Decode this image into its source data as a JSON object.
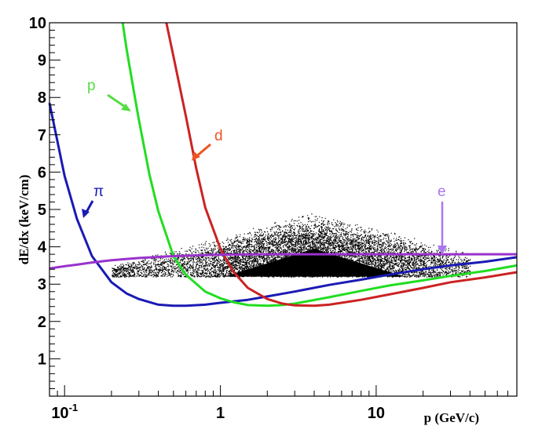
{
  "chart_data": {
    "type": "line",
    "title": "",
    "xlabel": "p (GeV/c)",
    "ylabel": "dE/dx (keV/cm)",
    "xscale": "log",
    "xlim": [
      0.08,
      80
    ],
    "ylim": [
      0,
      10
    ],
    "x_ticks": [
      {
        "value": 0.1,
        "label": "10",
        "exp": "-1"
      },
      {
        "value": 1,
        "label": "1",
        "exp": ""
      },
      {
        "value": 10,
        "label": "10",
        "exp": ""
      }
    ],
    "y_ticks": [
      {
        "value": 1,
        "label": "1"
      },
      {
        "value": 2,
        "label": "2"
      },
      {
        "value": 3,
        "label": "3"
      },
      {
        "value": 4,
        "label": "4"
      },
      {
        "value": 5,
        "label": "5"
      },
      {
        "value": 6,
        "label": "6"
      },
      {
        "value": 7,
        "label": "7"
      },
      {
        "value": 8,
        "label": "8"
      },
      {
        "value": 9,
        "label": "9"
      },
      {
        "value": 10,
        "label": "10"
      }
    ],
    "grid": false,
    "series": [
      {
        "name": "π",
        "color": "#1a1ab4",
        "x": [
          0.08,
          0.1,
          0.12,
          0.15,
          0.2,
          0.25,
          0.3,
          0.4,
          0.5,
          0.6,
          0.8,
          1,
          1.5,
          2,
          3,
          5,
          8,
          12,
          20,
          30,
          50,
          80
        ],
        "y": [
          7.85,
          5.9,
          4.75,
          3.75,
          3.05,
          2.75,
          2.6,
          2.45,
          2.42,
          2.42,
          2.45,
          2.5,
          2.58,
          2.67,
          2.8,
          2.98,
          3.12,
          3.25,
          3.4,
          3.5,
          3.6,
          3.72
        ]
      },
      {
        "name": "p",
        "color": "#22dd22",
        "x": [
          0.236,
          0.25,
          0.28,
          0.3,
          0.35,
          0.4,
          0.5,
          0.6,
          0.8,
          1,
          1.2,
          1.5,
          2,
          2.5,
          3,
          5,
          8,
          12,
          20,
          30,
          50,
          80
        ],
        "y": [
          10,
          9.3,
          8.1,
          7.4,
          5.95,
          4.95,
          3.75,
          3.25,
          2.8,
          2.62,
          2.52,
          2.44,
          2.42,
          2.44,
          2.48,
          2.65,
          2.82,
          2.96,
          3.1,
          3.22,
          3.35,
          3.5
        ]
      },
      {
        "name": "d",
        "color": "#cc2222",
        "x": [
          0.45,
          0.5,
          0.6,
          0.7,
          0.8,
          1,
          1.2,
          1.5,
          2,
          2.5,
          3,
          4,
          5,
          8,
          12,
          20,
          30,
          50,
          80
        ],
        "y": [
          10,
          9.1,
          7.5,
          6.1,
          5.05,
          3.95,
          3.35,
          2.9,
          2.6,
          2.48,
          2.43,
          2.42,
          2.45,
          2.58,
          2.72,
          2.9,
          3.05,
          3.18,
          3.32
        ]
      },
      {
        "name": "e",
        "color": "#9933cc",
        "x": [
          0.08,
          0.1,
          0.12,
          0.15,
          0.2,
          0.3,
          0.5,
          0.8,
          1,
          2,
          5,
          10,
          30,
          80
        ],
        "y": [
          3.42,
          3.48,
          3.52,
          3.58,
          3.64,
          3.7,
          3.75,
          3.78,
          3.79,
          3.8,
          3.8,
          3.8,
          3.8,
          3.8
        ]
      }
    ],
    "scatter_band": {
      "color": "#000000",
      "x_range": [
        0.2,
        40
      ],
      "y_range": [
        3.2,
        5.0
      ],
      "density_center": {
        "x": 4,
        "y": 3.6
      }
    },
    "annotations": [
      {
        "text": "π",
        "color": "#1a1ab4"
      },
      {
        "text": "p",
        "color": "#55dd44"
      },
      {
        "text": "d",
        "color": "#ee5522"
      },
      {
        "text": "e",
        "color": "#aa77ee"
      }
    ]
  }
}
